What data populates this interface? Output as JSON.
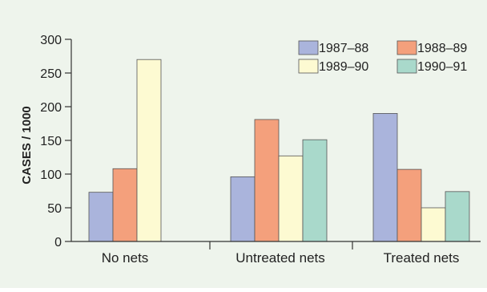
{
  "chart_data": {
    "type": "bar",
    "title": "",
    "xlabel": "",
    "ylabel": "CASES / 1000",
    "ylim": [
      0,
      300
    ],
    "yticks": [
      0,
      50,
      100,
      150,
      200,
      250,
      300
    ],
    "categories": [
      "No nets",
      "Untreated nets",
      "Treated nets"
    ],
    "series": [
      {
        "name": "1987–88",
        "color": "#aab4dc",
        "values": [
          73,
          96,
          190
        ]
      },
      {
        "name": "1988–89",
        "color": "#f4a07c",
        "values": [
          108,
          181,
          107
        ]
      },
      {
        "name": "1989–90",
        "color": "#fdfad2",
        "values": [
          270,
          127,
          50
        ]
      },
      {
        "name": "1990–91",
        "color": "#a9d9cb",
        "values": [
          null,
          151,
          74
        ]
      }
    ],
    "legend_position": "top-right",
    "grid": false
  },
  "colors": {
    "background": "#eef4ec",
    "bar_stroke": "#555555",
    "axis": "#333333",
    "text": "#222222"
  }
}
